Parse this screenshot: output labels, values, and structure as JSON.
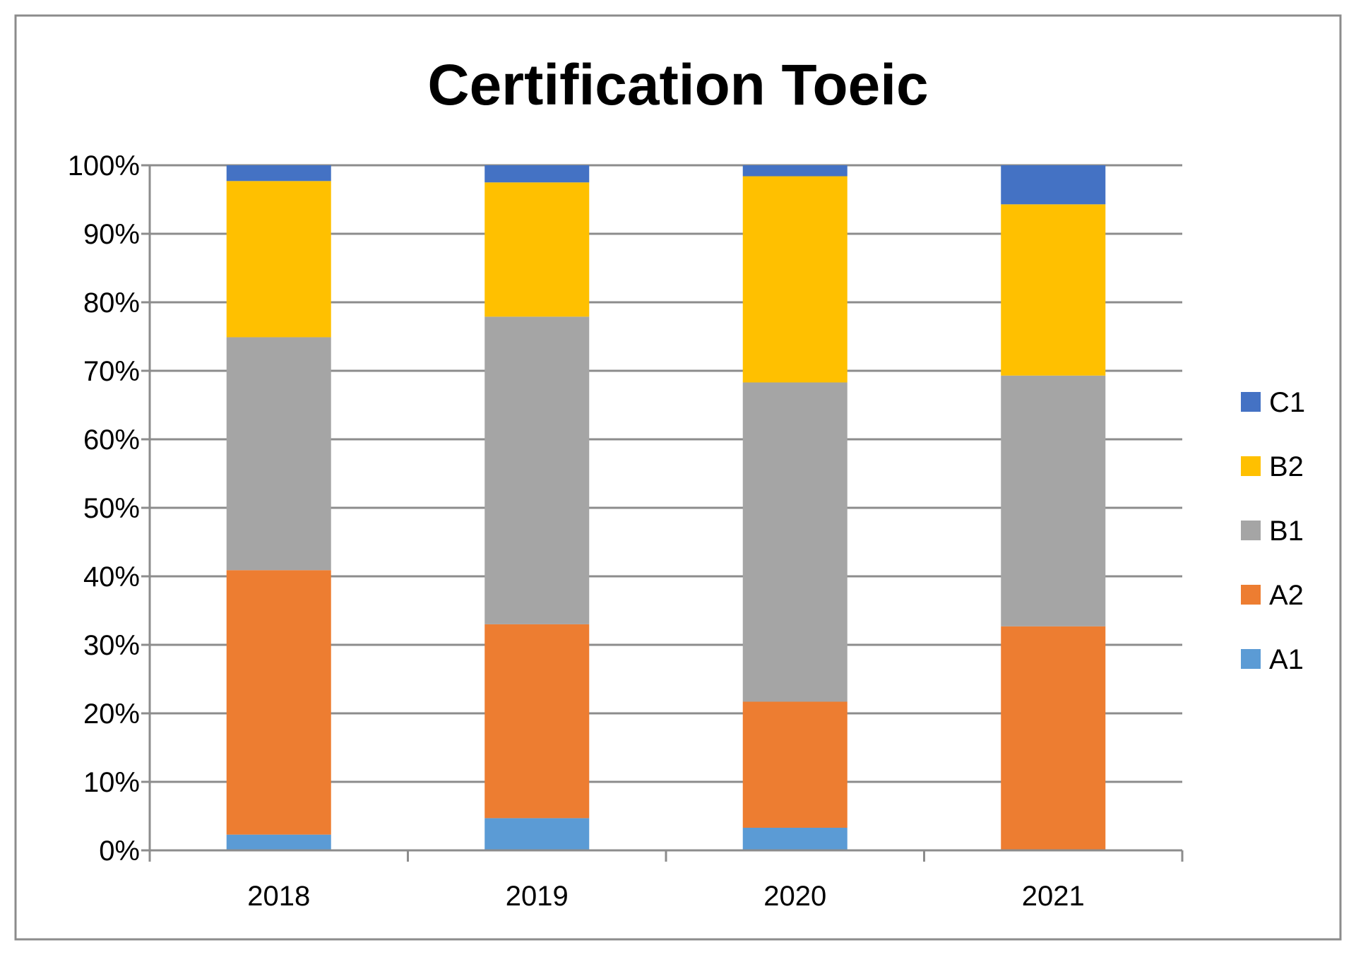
{
  "chart_data": {
    "type": "bar",
    "stacked": true,
    "percent": true,
    "title": "Certification Toeic",
    "categories": [
      "2018",
      "2019",
      "2020",
      "2021"
    ],
    "y_tick_labels": [
      "0%",
      "10%",
      "20%",
      "30%",
      "40%",
      "50%",
      "60%",
      "70%",
      "80%",
      "90%",
      "100%"
    ],
    "ylim": [
      0,
      100
    ],
    "grid": true,
    "legend_position": "right",
    "series": [
      {
        "name": "A1",
        "color": "#5B9BD5",
        "values": [
          2.3,
          4.7,
          3.3,
          0
        ]
      },
      {
        "name": "A2",
        "color": "#ED7D31",
        "values": [
          38.6,
          28.3,
          18.4,
          32.7
        ]
      },
      {
        "name": "B1",
        "color": "#A5A5A5",
        "values": [
          34.0,
          44.9,
          46.6,
          36.6
        ]
      },
      {
        "name": "B2",
        "color": "#FFC000",
        "values": [
          22.8,
          19.6,
          30.1,
          25.0
        ]
      },
      {
        "name": "C1",
        "color": "#4472C4",
        "values": [
          2.3,
          2.5,
          1.6,
          5.7
        ]
      }
    ]
  }
}
